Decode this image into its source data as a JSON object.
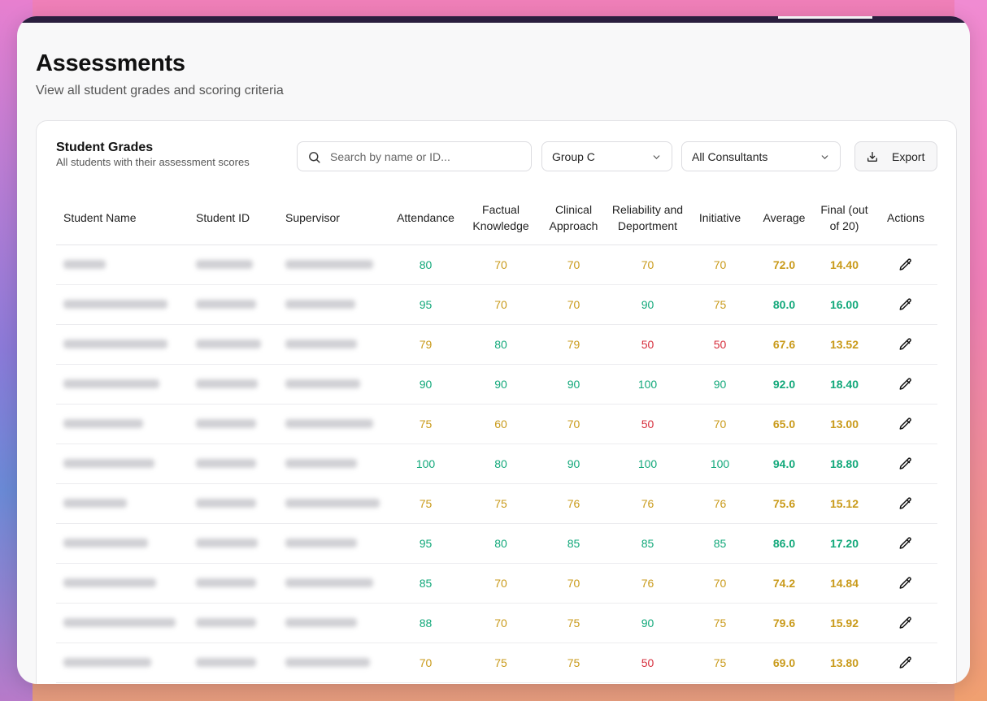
{
  "page": {
    "title": "Assessments",
    "subtitle": "View all student grades and scoring criteria"
  },
  "card": {
    "title": "Student Grades",
    "subtitle": "All students with their assessment scores"
  },
  "search": {
    "placeholder": "Search by name or ID...",
    "value": ""
  },
  "filters": {
    "group": "Group C",
    "consultant": "All Consultants"
  },
  "export_label": "Export",
  "colors": {
    "green": "#12a87a",
    "amber": "#c99a1a",
    "red": "#d62d3b"
  },
  "table": {
    "columns": [
      "Student Name",
      "Student ID",
      "Supervisor",
      "Attendance",
      "Factual Knowledge",
      "Clinical Approach",
      "Reliability and Deportment",
      "Initiative",
      "Average",
      "Final (out of 20)",
      "Actions"
    ],
    "rows": [
      {
        "attendance": "80",
        "factual": "70",
        "clinical": "70",
        "reliability": "70",
        "initiative": "70",
        "average": "72.0",
        "final": "14.40"
      },
      {
        "attendance": "95",
        "factual": "70",
        "clinical": "70",
        "reliability": "90",
        "initiative": "75",
        "average": "80.0",
        "final": "16.00"
      },
      {
        "attendance": "79",
        "factual": "80",
        "clinical": "79",
        "reliability": "50",
        "initiative": "50",
        "average": "67.6",
        "final": "13.52"
      },
      {
        "attendance": "90",
        "factual": "90",
        "clinical": "90",
        "reliability": "100",
        "initiative": "90",
        "average": "92.0",
        "final": "18.40"
      },
      {
        "attendance": "75",
        "factual": "60",
        "clinical": "70",
        "reliability": "50",
        "initiative": "70",
        "average": "65.0",
        "final": "13.00"
      },
      {
        "attendance": "100",
        "factual": "80",
        "clinical": "90",
        "reliability": "100",
        "initiative": "100",
        "average": "94.0",
        "final": "18.80"
      },
      {
        "attendance": "75",
        "factual": "75",
        "clinical": "76",
        "reliability": "76",
        "initiative": "76",
        "average": "75.6",
        "final": "15.12"
      },
      {
        "attendance": "95",
        "factual": "80",
        "clinical": "85",
        "reliability": "85",
        "initiative": "85",
        "average": "86.0",
        "final": "17.20"
      },
      {
        "attendance": "85",
        "factual": "70",
        "clinical": "70",
        "reliability": "76",
        "initiative": "70",
        "average": "74.2",
        "final": "14.84"
      },
      {
        "attendance": "88",
        "factual": "70",
        "clinical": "75",
        "reliability": "90",
        "initiative": "75",
        "average": "79.6",
        "final": "15.92"
      },
      {
        "attendance": "70",
        "factual": "75",
        "clinical": "75",
        "reliability": "50",
        "initiative": "75",
        "average": "69.0",
        "final": "13.80"
      }
    ]
  }
}
